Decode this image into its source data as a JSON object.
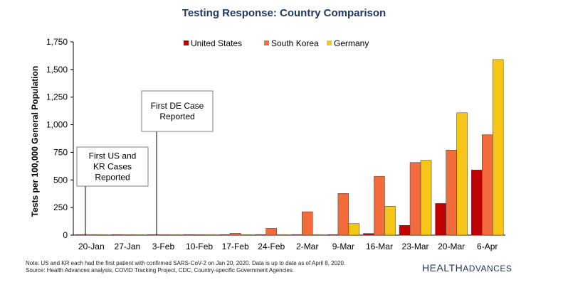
{
  "chart_data": {
    "type": "bar",
    "title": "Testing Response: Country Comparison",
    "xlabel": "",
    "ylabel": "Tests per 100,000 General Population",
    "ylim": [
      0,
      1750
    ],
    "yticks": [
      "0",
      "250",
      "500",
      "750",
      "1,000",
      "1,250",
      "1,500",
      "1,750"
    ],
    "ytick_values": [
      0,
      250,
      500,
      750,
      1000,
      1250,
      1500,
      1750
    ],
    "categories": [
      "20-Jan",
      "27-Jan",
      "3-Feb",
      "10-Feb",
      "17-Feb",
      "24-Feb",
      "2-Mar",
      "9-Mar",
      "16-Mar",
      "23-Mar",
      "20-Mar",
      "6-Apr"
    ],
    "series": [
      {
        "name": "United States",
        "color": "#c00000",
        "values": [
          0,
          0,
          0,
          0,
          0,
          0,
          1,
          2,
          15,
          88,
          287,
          590
        ]
      },
      {
        "name": "South Korea",
        "color": "#f26b3a",
        "values": [
          0,
          0,
          0,
          3,
          17,
          62,
          212,
          378,
          533,
          658,
          770,
          910
        ]
      },
      {
        "name": "Germany",
        "color": "#f5c518",
        "values": [
          0,
          0,
          0,
          0,
          0,
          0,
          0,
          105,
          262,
          678,
          1108,
          1590
        ]
      }
    ],
    "legend_position": "top",
    "grid": false,
    "annotations": [
      {
        "lines": [
          "First US and",
          "KR Cases",
          "Reported"
        ],
        "category": "20-Jan"
      },
      {
        "lines": [
          "First DE Case",
          "Reported"
        ],
        "category": "3-Feb"
      }
    ]
  },
  "footer": {
    "note": "Note:  US and KR each had the first patient with confirmed SARS-CoV-2 on Jan 20, 2020. Data is up to date as of April 8, 2020.",
    "source": "Source:  Health Advances analysis, COVID Tracking Project, CDC, Country-specific Government Agencies.",
    "logo_word1": "HEALTH",
    "logo_word2": "ADVANCES"
  }
}
